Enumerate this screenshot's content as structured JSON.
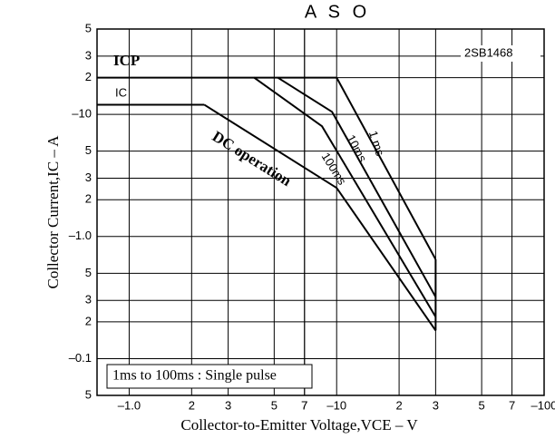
{
  "chart_data": {
    "type": "line",
    "title": "A S O",
    "subtitle": "2SB1468",
    "note": "1ms to 100ms : Single pulse",
    "x_label": "Collector-to-Emitter Voltage,VCE – V",
    "y_label": "Collector Current,IC – A",
    "xscale": "log",
    "yscale": "log",
    "grid": true,
    "color": "#000000",
    "xlim": [
      0.7,
      100
    ],
    "ylim": [
      0.05,
      50
    ],
    "xticks": [
      7,
      {
        "value": 1,
        "label": "–1.0"
      },
      2,
      3,
      5,
      7,
      {
        "value": 10,
        "label": "–10"
      },
      {
        "value": 20,
        "label": "2"
      },
      {
        "value": 30,
        "label": "3"
      },
      {
        "value": 50,
        "label": "5"
      },
      {
        "value": 70,
        "label": "7"
      },
      {
        "value": 100,
        "label": "–100"
      }
    ],
    "yticks": [
      {
        "value": 50,
        "label": "5"
      },
      {
        "value": 30,
        "label": "3"
      },
      {
        "value": 20,
        "label": "2"
      },
      {
        "value": 10,
        "label": "–10"
      },
      5,
      3,
      2,
      {
        "value": 1,
        "label": "–1.0"
      },
      {
        "value": 0.5,
        "label": "5"
      },
      {
        "value": 0.3,
        "label": "3"
      },
      {
        "value": 0.2,
        "label": "2"
      },
      {
        "value": 0.1,
        "label": "–0.1"
      },
      {
        "value": 0.05,
        "label": "5"
      }
    ],
    "series": [
      {
        "name": "ICP",
        "x": [
          0.7,
          10
        ],
        "values": [
          20,
          20
        ]
      },
      {
        "name": "1 ms",
        "x": [
          10,
          30
        ],
        "values": [
          20,
          0.65
        ]
      },
      {
        "name": "10ms",
        "x": [
          5.2,
          9.5,
          30
        ],
        "values": [
          20,
          10.5,
          0.32
        ]
      },
      {
        "name": "100ms",
        "x": [
          4,
          8.5,
          30
        ],
        "values": [
          20,
          8,
          0.22
        ]
      },
      {
        "name": "IC",
        "x": [
          0.7,
          2.3
        ],
        "values": [
          12,
          12
        ]
      },
      {
        "name": "DC operation",
        "x": [
          2.3,
          10,
          30
        ],
        "values": [
          12,
          2.5,
          0.17
        ]
      }
    ]
  }
}
